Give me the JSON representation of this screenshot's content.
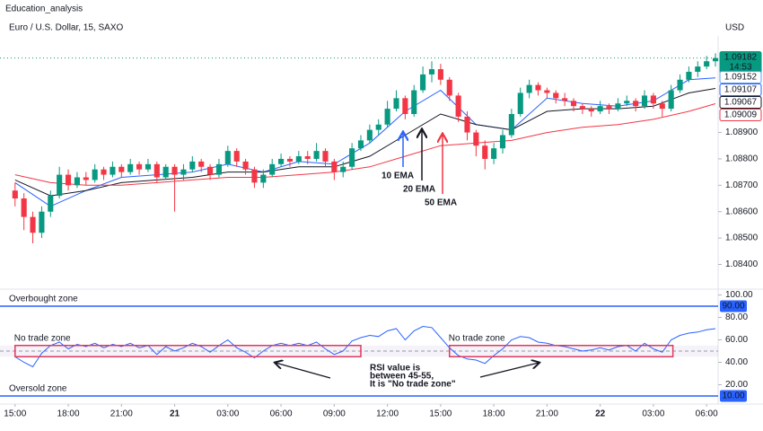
{
  "header": {
    "account": "Education_analysis",
    "symbol": "Euro / U.S. Dollar, 15, SAXO",
    "currency": "USD"
  },
  "chart_data": [
    {
      "type": "candlestick",
      "up_color": "#089981",
      "down_color": "#f23645",
      "xlim": [
        -0.85,
        39.65
      ],
      "ylim": [
        1.0832,
        1.093
      ],
      "yticks": [
        {
          "value": 1.084,
          "label": "1.08400"
        },
        {
          "value": 1.085,
          "label": "1.08500"
        },
        {
          "value": 1.086,
          "label": "1.08600"
        },
        {
          "value": 1.087,
          "label": "1.08700"
        },
        {
          "value": 1.088,
          "label": "1.08800"
        },
        {
          "value": 1.089,
          "label": "1.08900"
        }
      ],
      "x": [
        0,
        0.5,
        1,
        1.5,
        2,
        2.5,
        3,
        3.5,
        4,
        4.5,
        5,
        5.5,
        6,
        6.5,
        7,
        7.5,
        8,
        8.5,
        9,
        9.5,
        10,
        10.5,
        11,
        11.5,
        12,
        12.5,
        13,
        13.5,
        14,
        14.5,
        15,
        15.5,
        16,
        16.5,
        17,
        17.5,
        18,
        18.5,
        19,
        19.5,
        20,
        20.5,
        21,
        21.5,
        22,
        22.5,
        23,
        23.5,
        24,
        24.5,
        25,
        25.5,
        26,
        26.5,
        27,
        27.5,
        28,
        28.5,
        29,
        29.5,
        30,
        30.5,
        31,
        31.5,
        32,
        32.5,
        33,
        33.5,
        34,
        34.5,
        35,
        35.5,
        36,
        36.5,
        37,
        37.5,
        38,
        38.5,
        39,
        39.5
      ],
      "ohlc": [
        [
          1.0868,
          1.0871,
          1.0862,
          1.0865
        ],
        [
          1.0865,
          1.0867,
          1.0853,
          1.0858
        ],
        [
          1.0858,
          1.086,
          1.0848,
          1.0852
        ],
        [
          1.0852,
          1.0862,
          1.085,
          1.086
        ],
        [
          1.086,
          1.0868,
          1.0858,
          1.0866
        ],
        [
          1.0866,
          1.0877,
          1.0865,
          1.0874
        ],
        [
          1.0874,
          1.0876,
          1.0868,
          1.087
        ],
        [
          1.087,
          1.0875,
          1.0869,
          1.0873
        ],
        [
          1.0873,
          1.0875,
          1.087,
          1.0872
        ],
        [
          1.0872,
          1.0878,
          1.0871,
          1.0876
        ],
        [
          1.0876,
          1.0877,
          1.0872,
          1.0874
        ],
        [
          1.0874,
          1.0879,
          1.0873,
          1.0877
        ],
        [
          1.0877,
          1.0878,
          1.0873,
          1.0875
        ],
        [
          1.0875,
          1.088,
          1.0874,
          1.0878
        ],
        [
          1.0878,
          1.0879,
          1.0874,
          1.0876
        ],
        [
          1.0876,
          1.088,
          1.0875,
          1.0878
        ],
        [
          1.0878,
          1.0879,
          1.0871,
          1.0873
        ],
        [
          1.0873,
          1.0878,
          1.0872,
          1.0877
        ],
        [
          1.0877,
          1.0878,
          1.086,
          1.0874
        ],
        [
          1.0874,
          1.0878,
          1.0872,
          1.0876
        ],
        [
          1.0876,
          1.0881,
          1.0875,
          1.0879
        ],
        [
          1.0879,
          1.088,
          1.0875,
          1.0877
        ],
        [
          1.0877,
          1.0878,
          1.0872,
          1.0874
        ],
        [
          1.0874,
          1.088,
          1.0873,
          1.0878
        ],
        [
          1.0878,
          1.0885,
          1.0877,
          1.0883
        ],
        [
          1.0883,
          1.0884,
          1.0877,
          1.0879
        ],
        [
          1.0879,
          1.088,
          1.0874,
          1.0876
        ],
        [
          1.0876,
          1.0877,
          1.0869,
          1.0871
        ],
        [
          1.0871,
          1.0876,
          1.0869,
          1.0874
        ],
        [
          1.0874,
          1.088,
          1.0873,
          1.0878
        ],
        [
          1.0878,
          1.0882,
          1.0877,
          1.088
        ],
        [
          1.088,
          1.0881,
          1.0877,
          1.0879
        ],
        [
          1.0879,
          1.0883,
          1.0878,
          1.0881
        ],
        [
          1.0881,
          1.0883,
          1.0878,
          1.088
        ],
        [
          1.088,
          1.0886,
          1.0879,
          1.0883
        ],
        [
          1.0883,
          1.0884,
          1.0877,
          1.0879
        ],
        [
          1.0879,
          1.088,
          1.0872,
          1.0875
        ],
        [
          1.0875,
          1.0879,
          1.0873,
          1.0877
        ],
        [
          1.0877,
          1.0886,
          1.0876,
          1.0884
        ],
        [
          1.0884,
          1.0889,
          1.0883,
          1.0887
        ],
        [
          1.0887,
          1.0893,
          1.0886,
          1.0891
        ],
        [
          1.0891,
          1.0895,
          1.0889,
          1.0893
        ],
        [
          1.0893,
          1.0902,
          1.0892,
          1.0899
        ],
        [
          1.0899,
          1.0906,
          1.0898,
          1.0903
        ],
        [
          1.0903,
          1.0904,
          1.0895,
          1.0897
        ],
        [
          1.0897,
          1.0908,
          1.0896,
          1.0906
        ],
        [
          1.0906,
          1.0915,
          1.0905,
          1.0912
        ],
        [
          1.0912,
          1.0917,
          1.0909,
          1.0914
        ],
        [
          1.0914,
          1.0916,
          1.0908,
          1.091
        ],
        [
          1.091,
          1.0911,
          1.0902,
          1.0904
        ],
        [
          1.0904,
          1.0905,
          1.0894,
          1.0896
        ],
        [
          1.0896,
          1.0898,
          1.0887,
          1.089
        ],
        [
          1.089,
          1.0891,
          1.0881,
          1.0885
        ],
        [
          1.0885,
          1.0887,
          1.0876,
          1.088
        ],
        [
          1.088,
          1.0886,
          1.0878,
          1.0884
        ],
        [
          1.0884,
          1.0891,
          1.0882,
          1.0889
        ],
        [
          1.0889,
          1.0899,
          1.0888,
          1.0897
        ],
        [
          1.0897,
          1.0907,
          1.0896,
          1.0905
        ],
        [
          1.0905,
          1.091,
          1.0903,
          1.0908
        ],
        [
          1.0908,
          1.0909,
          1.0904,
          1.0906
        ],
        [
          1.0906,
          1.0907,
          1.0903,
          1.0905
        ],
        [
          1.0905,
          1.0906,
          1.0901,
          1.0903
        ],
        [
          1.0903,
          1.0905,
          1.09,
          1.0902
        ],
        [
          1.0902,
          1.0903,
          1.0898,
          1.09
        ],
        [
          1.09,
          1.0901,
          1.0897,
          1.0899
        ],
        [
          1.0899,
          1.09,
          1.0896,
          1.0898
        ],
        [
          1.0898,
          1.0902,
          1.0897,
          1.09
        ],
        [
          1.09,
          1.0901,
          1.0897,
          1.0899
        ],
        [
          1.0899,
          1.0903,
          1.0898,
          1.0901
        ],
        [
          1.0901,
          1.0904,
          1.09,
          1.0902
        ],
        [
          1.0902,
          1.0903,
          1.0898,
          1.09
        ],
        [
          1.09,
          1.0906,
          1.0899,
          1.0904
        ],
        [
          1.0904,
          1.0905,
          1.0899,
          1.0901
        ],
        [
          1.0901,
          1.0902,
          1.0896,
          1.0899
        ],
        [
          1.0899,
          1.0908,
          1.0898,
          1.0906
        ],
        [
          1.0906,
          1.0912,
          1.0905,
          1.091
        ],
        [
          1.091,
          1.0915,
          1.0909,
          1.0913
        ],
        [
          1.0913,
          1.0917,
          1.0911,
          1.0915
        ],
        [
          1.0915,
          1.0919,
          1.0914,
          1.0917
        ],
        [
          1.0917,
          1.092,
          1.0915,
          1.09182
        ]
      ],
      "series": [
        {
          "name": "10 EMA",
          "color": "#2962ff",
          "x": [
            0,
            2,
            4,
            6,
            8,
            10,
            12,
            14,
            16,
            18,
            20,
            22,
            24,
            26,
            28,
            30,
            32,
            34,
            36,
            38,
            39.5
          ],
          "values": [
            1.0871,
            1.0862,
            1.0868,
            1.0873,
            1.0874,
            1.0875,
            1.0878,
            1.0875,
            1.0879,
            1.0878,
            1.0886,
            1.0898,
            1.0906,
            1.0893,
            1.0891,
            1.0903,
            1.0901,
            1.09,
            1.0902,
            1.091,
            1.09107
          ]
        },
        {
          "name": "20 EMA",
          "color": "#131722",
          "x": [
            0,
            2,
            4,
            6,
            8,
            10,
            12,
            14,
            16,
            18,
            20,
            22,
            24,
            26,
            28,
            30,
            32,
            34,
            36,
            38,
            39.5
          ],
          "values": [
            1.0872,
            1.0866,
            1.0868,
            1.0871,
            1.0872,
            1.0873,
            1.0875,
            1.0875,
            1.0877,
            1.0877,
            1.0881,
            1.0889,
            1.0897,
            1.0893,
            1.0891,
            1.0898,
            1.0899,
            1.0899,
            1.09,
            1.0905,
            1.09067
          ]
        },
        {
          "name": "50 EMA",
          "color": "#f23645",
          "x": [
            0,
            2,
            4,
            6,
            8,
            10,
            12,
            14,
            16,
            18,
            20,
            22,
            24,
            26,
            28,
            30,
            32,
            34,
            36,
            38,
            39.5
          ],
          "values": [
            1.0874,
            1.0871,
            1.087,
            1.087,
            1.0871,
            1.0872,
            1.0873,
            1.0873,
            1.0874,
            1.0875,
            1.0877,
            1.0881,
            1.0885,
            1.0886,
            1.0887,
            1.089,
            1.0892,
            1.0893,
            1.0895,
            1.0898,
            1.09009
          ]
        }
      ],
      "price_labels": [
        {
          "value": 1.09182,
          "label": "1.09182",
          "color": "#089981",
          "countdown": "14:53"
        },
        {
          "value": 1.09152,
          "label": "1.09152",
          "color": "#5b9cf6"
        },
        {
          "value": 1.09107,
          "label": "1.09107",
          "color": "#2962ff"
        },
        {
          "value": 1.09067,
          "label": "1.09067",
          "color": "#131722"
        },
        {
          "value": 1.09009,
          "label": "1.09009",
          "color": "#f23645"
        }
      ]
    },
    {
      "type": "line",
      "xlim": [
        -0.85,
        39.65
      ],
      "ylim": [
        3.6,
        102.8
      ],
      "yticks": [
        {
          "value": 100,
          "label": "100.00"
        },
        {
          "value": 80,
          "label": "80.00"
        },
        {
          "value": 60,
          "label": "60.00"
        },
        {
          "value": 40,
          "label": "40.00"
        },
        {
          "value": 20,
          "label": "20.00"
        }
      ],
      "xticks": [
        {
          "value": 0,
          "label": "15:00"
        },
        {
          "value": 3,
          "label": "18:00"
        },
        {
          "value": 6,
          "label": "21:00"
        },
        {
          "value": 9,
          "label": "21"
        },
        {
          "value": 12,
          "label": "03:00"
        },
        {
          "value": 15,
          "label": "06:00"
        },
        {
          "value": 18,
          "label": "09:00"
        },
        {
          "value": 21,
          "label": "12:00"
        },
        {
          "value": 24,
          "label": "15:00"
        },
        {
          "value": 27,
          "label": "18:00"
        },
        {
          "value": 30,
          "label": "21:00"
        },
        {
          "value": 33,
          "label": "22"
        },
        {
          "value": 36,
          "label": "03:00"
        },
        {
          "value": 39,
          "label": "06:00"
        }
      ],
      "x": [
        0,
        0.5,
        1,
        1.5,
        2,
        2.5,
        3,
        3.5,
        4,
        4.5,
        5,
        5.5,
        6,
        6.5,
        7,
        7.5,
        8,
        8.5,
        9,
        9.5,
        10,
        10.5,
        11,
        11.5,
        12,
        12.5,
        13,
        13.5,
        14,
        14.5,
        15,
        15.5,
        16,
        16.5,
        17,
        17.5,
        18,
        18.5,
        19,
        19.5,
        20,
        20.5,
        21,
        21.5,
        22,
        22.5,
        23,
        23.5,
        24,
        24.5,
        25,
        25.5,
        26,
        26.5,
        27,
        27.5,
        28,
        28.5,
        29,
        29.5,
        30,
        30.5,
        31,
        31.5,
        32,
        32.5,
        33,
        33.5,
        34,
        34.5,
        35,
        35.5,
        36,
        36.5,
        37,
        37.5,
        38,
        38.5,
        39,
        39.5
      ],
      "series": [
        {
          "name": "RSI",
          "color": "#2962ff",
          "values": [
            45,
            40,
            36,
            48,
            55,
            58,
            52,
            56,
            54,
            57,
            53,
            56,
            54,
            57,
            53,
            55,
            47,
            54,
            50,
            53,
            57,
            54,
            49,
            55,
            60,
            53,
            49,
            44,
            50,
            55,
            57,
            55,
            57,
            55,
            58,
            52,
            47,
            50,
            59,
            62,
            64,
            63,
            68,
            70,
            60,
            68,
            72,
            71,
            62,
            53,
            46,
            43,
            42,
            39,
            46,
            52,
            60,
            63,
            62,
            58,
            57,
            55,
            54,
            52,
            50,
            51,
            53,
            51,
            54,
            55,
            50,
            57,
            52,
            49,
            60,
            64,
            66,
            67,
            69,
            70
          ]
        }
      ],
      "midline": 50,
      "band": [
        45,
        55
      ],
      "hlines": [
        {
          "value": 90,
          "label": "90.00",
          "name": "Overbought zone",
          "color": "#2962ff"
        },
        {
          "value": 10,
          "label": "10.00",
          "name": "Oversold zone",
          "color": "#2962ff"
        }
      ],
      "zones": [
        {
          "x": [
            0,
            19.5
          ],
          "y": [
            45,
            55
          ],
          "label": "No trade zone"
        },
        {
          "x": [
            24.5,
            37.1
          ],
          "y": [
            45,
            55
          ],
          "label": "No trade zone"
        }
      ],
      "annotation": [
        "RSI value is",
        "between 45-55,",
        "It is \"No trade zone\""
      ]
    }
  ]
}
